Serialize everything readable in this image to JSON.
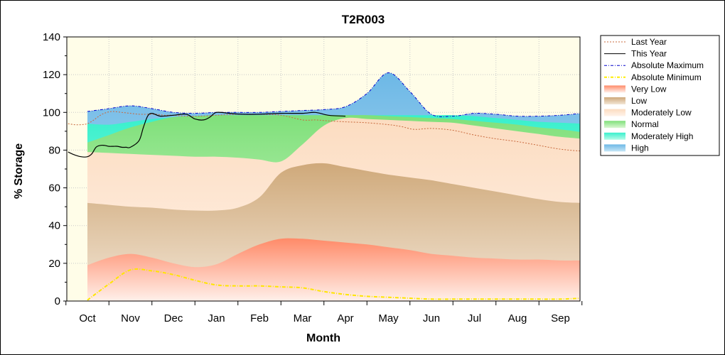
{
  "chart_data": {
    "type": "area",
    "title": "T2R003",
    "xlabel": "Month",
    "ylabel": "% Storage",
    "ylim": [
      0,
      140
    ],
    "yticks": [
      0,
      20,
      40,
      60,
      80,
      100,
      120,
      140
    ],
    "month_labels": [
      "Oct",
      "Nov",
      "Dec",
      "Jan",
      "Feb",
      "Mar",
      "Apr",
      "May",
      "Jun",
      "Jul",
      "Aug",
      "Sep"
    ],
    "x_unit": "months from start of October (0 = Oct 1, 12 = next Oct 1)",
    "grid": true,
    "legend_position": "right",
    "legend": [
      {
        "key": "last_year",
        "label": "Last Year",
        "color": "#c8683c",
        "style": "dash"
      },
      {
        "key": "this_year",
        "label": "This Year",
        "color": "#000000",
        "style": "solid"
      },
      {
        "key": "abs_max",
        "label": "Absolute Maximum",
        "color": "#0000cc",
        "style": "dashdot"
      },
      {
        "key": "abs_min",
        "label": "Absolute Minimum",
        "color": "#ffee00",
        "style": "dashdot"
      },
      {
        "key": "very_low",
        "label": "Very Low",
        "color": "#ff8c6a",
        "style": "fill"
      },
      {
        "key": "low",
        "label": "Low",
        "color": "#d7b58a",
        "style": "fill"
      },
      {
        "key": "moderately_low",
        "label": "Moderately Low",
        "color": "#fde2c8",
        "style": "fill"
      },
      {
        "key": "normal",
        "label": "Normal",
        "color": "#8ee88a",
        "style": "fill"
      },
      {
        "key": "moderately_high",
        "label": "Moderately High",
        "color": "#2ef0c8",
        "style": "fill"
      },
      {
        "key": "high",
        "label": "High",
        "color": "#8ec8e8",
        "style": "fill"
      }
    ],
    "bands": {
      "x": [
        0,
        0.5,
        1,
        1.5,
        2,
        2.5,
        3,
        3.5,
        4,
        4.5,
        5,
        5.5,
        6,
        6.5,
        7,
        7.5,
        8,
        8.5,
        9,
        9.5,
        10,
        10.5,
        11,
        11.5
      ],
      "abs_min": [
        0.5,
        9,
        16.5,
        16,
        14,
        11,
        8.5,
        8,
        8,
        7.5,
        7,
        5,
        3.5,
        2.5,
        2,
        1.5,
        1,
        1,
        1,
        1,
        1,
        1,
        1,
        1.5
      ],
      "very_low_top": [
        19,
        23,
        25,
        23,
        20,
        18,
        19.5,
        25,
        30,
        33,
        33,
        32,
        31,
        30,
        28.5,
        27,
        25,
        24,
        23,
        22.5,
        22,
        22,
        21.5,
        21.5
      ],
      "low_top": [
        52,
        51,
        50,
        49.5,
        48.5,
        48,
        48,
        49.5,
        55,
        68,
        72,
        73,
        71,
        69,
        67,
        65.5,
        64,
        62,
        60,
        58,
        56,
        54,
        52.5,
        52
      ],
      "mod_low_top": [
        79,
        78.5,
        78,
        77.5,
        77,
        76.5,
        76.5,
        76,
        75,
        74,
        83,
        93,
        97,
        96.5,
        96,
        95.5,
        95,
        94.5,
        93,
        91.5,
        90,
        88.5,
        87,
        86
      ],
      "normal_top": [
        84,
        88,
        92,
        95,
        97.5,
        98,
        98.5,
        98.5,
        98.5,
        98.5,
        98.5,
        98.5,
        98.5,
        98.5,
        98,
        97.5,
        97,
        96.5,
        95.5,
        94.5,
        93.5,
        92,
        91,
        89.5
      ],
      "mod_high_top": [
        94,
        93.5,
        95,
        96.5,
        97.5,
        98,
        98.5,
        98.5,
        98.5,
        98.5,
        98.5,
        98.5,
        98.5,
        98.5,
        98.5,
        98.5,
        98.5,
        98.5,
        98,
        97,
        96,
        95,
        94.5,
        94
      ],
      "abs_max": [
        100.5,
        102,
        103.5,
        102,
        100,
        99.5,
        100,
        100,
        100,
        100.5,
        101,
        101.5,
        103,
        110,
        121,
        111,
        99,
        98,
        99.5,
        99,
        98,
        98,
        98.5,
        99.5
      ]
    },
    "last_year": {
      "x": [
        -0.45,
        -0.3,
        -0.15,
        0,
        0.15,
        0.3,
        0.45,
        0.6,
        0.8,
        1,
        1.2,
        1.4,
        1.6,
        1.8,
        2,
        2.3,
        2.6,
        3,
        3.5,
        4,
        4.5,
        5,
        5.3,
        5.6,
        6,
        6.5,
        7,
        7.3,
        7.6,
        8,
        8.5,
        9,
        9.5,
        10,
        10.5,
        11,
        11.5,
        12
      ],
      "y": [
        94,
        93.5,
        93.5,
        94,
        96,
        98.5,
        100,
        100.5,
        100,
        99.5,
        99,
        99,
        99,
        98.5,
        98.5,
        98,
        98,
        98.5,
        99,
        99,
        98.5,
        96,
        96,
        95.5,
        95,
        94.5,
        93.5,
        92.5,
        91,
        91.5,
        90.5,
        88,
        86,
        84.5,
        82.5,
        80.5,
        79.5,
        79.5
      ]
    },
    "this_year": {
      "x": [
        -0.45,
        -0.3,
        -0.15,
        0,
        0.1,
        0.2,
        0.3,
        0.4,
        0.5,
        0.6,
        0.7,
        0.8,
        0.9,
        1,
        1.2,
        1.3,
        1.4,
        1.5,
        1.7,
        2,
        2.3,
        2.5,
        2.7,
        2.85,
        3,
        3.3,
        3.6,
        4,
        4.5,
        5,
        5.3,
        5.6,
        6
      ],
      "y": [
        79,
        77.5,
        76.5,
        76.5,
        78,
        81.5,
        82.5,
        82.5,
        82,
        82,
        82,
        81.5,
        81.5,
        81.5,
        85,
        92,
        98,
        99.5,
        98,
        98.5,
        99,
        96.5,
        96,
        97.5,
        100,
        99.5,
        99,
        99,
        99.5,
        99.5,
        100,
        98.5,
        98
      ]
    }
  }
}
